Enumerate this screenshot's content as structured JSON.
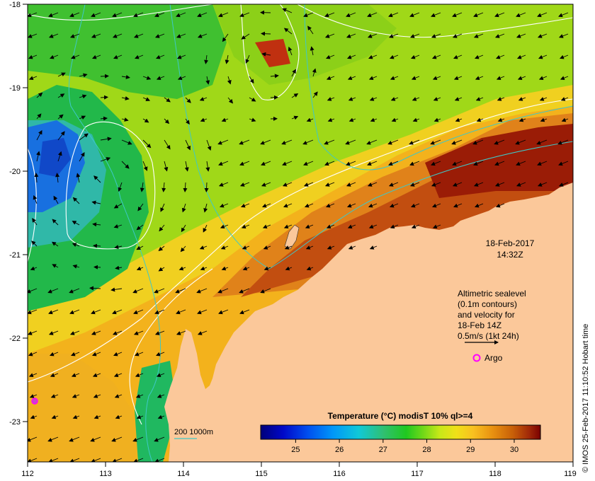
{
  "map": {
    "datetime": {
      "date": "18-Feb-2017",
      "time": "14:32Z"
    },
    "lon_ticks": [
      "112",
      "113",
      "114",
      "115",
      "116",
      "117",
      "118",
      "119"
    ],
    "lat_ticks": [
      "-18",
      "-19",
      "-20",
      "-21",
      "-22",
      "-23"
    ],
    "legend_text": {
      "line1": "Altimetric sealevel",
      "line2": "(0.1m contours)",
      "line3": "and velocity for",
      "line4": "18-Feb 14Z",
      "line5": "0.5m/s (1kt 24h)"
    },
    "argo_label": "Argo",
    "bathymetry_label": "200  1000m",
    "colorbar": {
      "title": "Temperature (°C) modisT 10% ql>=4",
      "ticks": [
        "25",
        "26",
        "27",
        "28",
        "29",
        "30"
      ],
      "range": [
        24.2,
        30.6
      ]
    },
    "credit": "© IMOS 25-Feb-2017 11:10:52 Hobart time",
    "colors": {
      "land": "#fbc89a",
      "contour": "#ffffff",
      "isobath": "#3ec8c8",
      "argo": "#ff00ff",
      "arrow": "#000000"
    }
  }
}
